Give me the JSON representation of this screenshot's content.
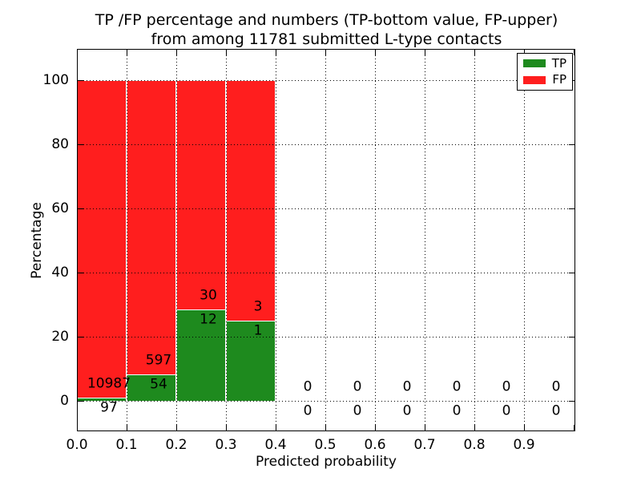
{
  "chart_data": {
    "type": "bar",
    "stacked": true,
    "unit": "percent",
    "title_line1": "TP /FP percentage and numbers (TP-bottom value, FP-upper)",
    "title_line2": "from among 11781 submitted L-type contacts",
    "xlabel": "Predicted probability",
    "ylabel": "Percentage",
    "total_submitted": 11781,
    "x_ticks": [
      "0.0",
      "0.1",
      "0.2",
      "0.3",
      "0.4",
      "0.5",
      "0.6",
      "0.7",
      "0.8",
      "0.9"
    ],
    "y_ticks": [
      0,
      20,
      40,
      60,
      80,
      100
    ],
    "xlim": [
      0.0,
      1.0
    ],
    "ylim": [
      -10,
      110
    ],
    "grid": "dotted",
    "legend_position": "upper right",
    "legend": [
      {
        "label": "TP",
        "color": "#1e8a1e"
      },
      {
        "label": "FP",
        "color": "#ff1e1e"
      }
    ],
    "bins": [
      {
        "start": 0.0,
        "end": 0.1,
        "tp": 97,
        "fp": 10987,
        "tp_pct": 0.88,
        "fp_pct": 99.12
      },
      {
        "start": 0.1,
        "end": 0.2,
        "tp": 54,
        "fp": 597,
        "tp_pct": 8.29,
        "fp_pct": 91.71
      },
      {
        "start": 0.2,
        "end": 0.3,
        "tp": 12,
        "fp": 30,
        "tp_pct": 28.57,
        "fp_pct": 71.43
      },
      {
        "start": 0.3,
        "end": 0.4,
        "tp": 1,
        "fp": 3,
        "tp_pct": 25.0,
        "fp_pct": 75.0
      },
      {
        "start": 0.4,
        "end": 0.5,
        "tp": 0,
        "fp": 0,
        "tp_pct": 0,
        "fp_pct": 0
      },
      {
        "start": 0.5,
        "end": 0.6,
        "tp": 0,
        "fp": 0,
        "tp_pct": 0,
        "fp_pct": 0
      },
      {
        "start": 0.6,
        "end": 0.7,
        "tp": 0,
        "fp": 0,
        "tp_pct": 0,
        "fp_pct": 0
      },
      {
        "start": 0.7,
        "end": 0.8,
        "tp": 0,
        "fp": 0,
        "tp_pct": 0,
        "fp_pct": 0
      },
      {
        "start": 0.8,
        "end": 0.9,
        "tp": 0,
        "fp": 0,
        "tp_pct": 0,
        "fp_pct": 0
      },
      {
        "start": 0.9,
        "end": 1.0,
        "tp": 0,
        "fp": 0,
        "tp_pct": 0,
        "fp_pct": 0
      }
    ],
    "colors": {
      "tp": "#1e8a1e",
      "fp": "#ff1e1e",
      "bar_edge": "#ffffff",
      "grid": "#000000",
      "text": "#000000",
      "background": "#ffffff"
    }
  }
}
